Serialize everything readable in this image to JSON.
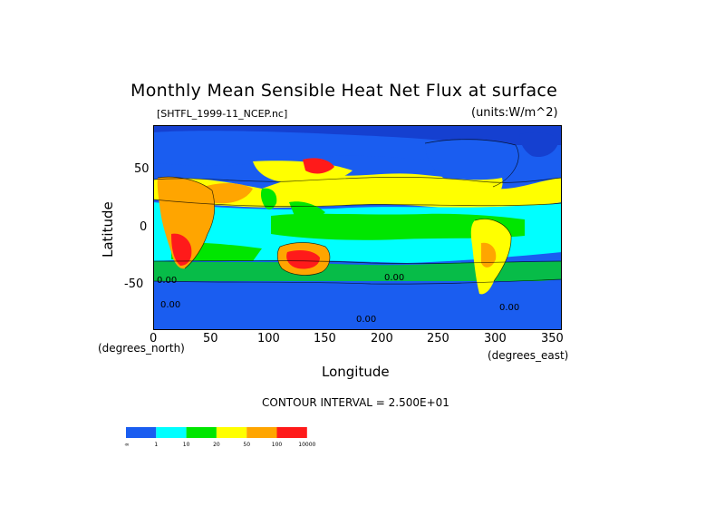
{
  "title": "Monthly Mean Sensible Heat Net Flux at surface",
  "subtitle": "[SHTFL_1999-11_NCEP.nc]",
  "units": "(units:W/m^2)",
  "axes": {
    "ylabel": "Latitude",
    "xlabel": "Longitude",
    "y_ticks": [
      "50",
      "0",
      "-50"
    ],
    "x_ticks": [
      "0",
      "50",
      "100",
      "150",
      "200",
      "250",
      "300",
      "350"
    ],
    "x_unit": "(degrees_east)",
    "y_unit": "(degrees_north)"
  },
  "contour_interval": "CONTOUR INTERVAL = 2.500E+01",
  "map_labels": [
    "0.00",
    "0.00",
    "0.00",
    "0.00",
    "0.00"
  ],
  "legend": {
    "colors": [
      "#1a5df0",
      "#00ffff",
      "#00e600",
      "#ffff00",
      "#ffa500",
      "#ff1a1a"
    ],
    "tick_labels": [
      "-∞",
      "1",
      "10",
      "20",
      "50",
      "100",
      "10000"
    ]
  }
}
